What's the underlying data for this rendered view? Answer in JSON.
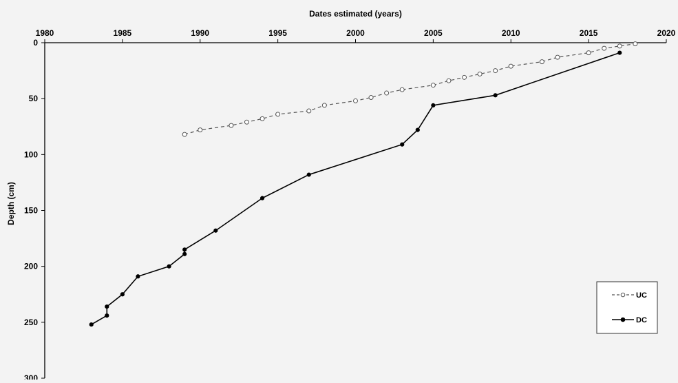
{
  "chart_data": {
    "type": "line",
    "xlabel": "Dates estimated (years)",
    "ylabel": "Depth (cm)",
    "xlim": [
      1980,
      2020
    ],
    "ylim": [
      0,
      300
    ],
    "y_inverted": true,
    "x_axis_position": "top",
    "x_ticks": [
      1980,
      1985,
      1990,
      1995,
      2000,
      2005,
      2010,
      2015,
      2020
    ],
    "y_ticks": [
      0,
      50,
      100,
      150,
      200,
      250,
      300
    ],
    "grid": false,
    "legend_position": "bottom-right",
    "series": [
      {
        "name": "UC",
        "style": "dashed",
        "marker": "open-circle",
        "color": "#555555",
        "x": [
          1989,
          1990,
          1992,
          1993,
          1994,
          1995,
          1997,
          1998,
          2000,
          2001,
          2002,
          2003,
          2005,
          2006,
          2007,
          2008,
          2009,
          2010,
          2012,
          2013,
          2015,
          2016,
          2017,
          2018
        ],
        "y": [
          82,
          78,
          74,
          71,
          68,
          64,
          61,
          56,
          52,
          49,
          45,
          42,
          38,
          34,
          31,
          28,
          25,
          21,
          17,
          13,
          9,
          5,
          3,
          1
        ]
      },
      {
        "name": "DC",
        "style": "solid",
        "marker": "filled-circle",
        "color": "#000000",
        "x": [
          1983,
          1984,
          1984,
          1985,
          1986,
          1988,
          1989,
          1989,
          1991,
          1994,
          1997,
          2003,
          2004,
          2005,
          2009,
          2017
        ],
        "y": [
          252,
          244,
          236,
          225,
          209,
          200,
          189,
          185,
          168,
          139,
          118,
          91,
          78,
          56,
          47,
          9
        ]
      }
    ]
  }
}
